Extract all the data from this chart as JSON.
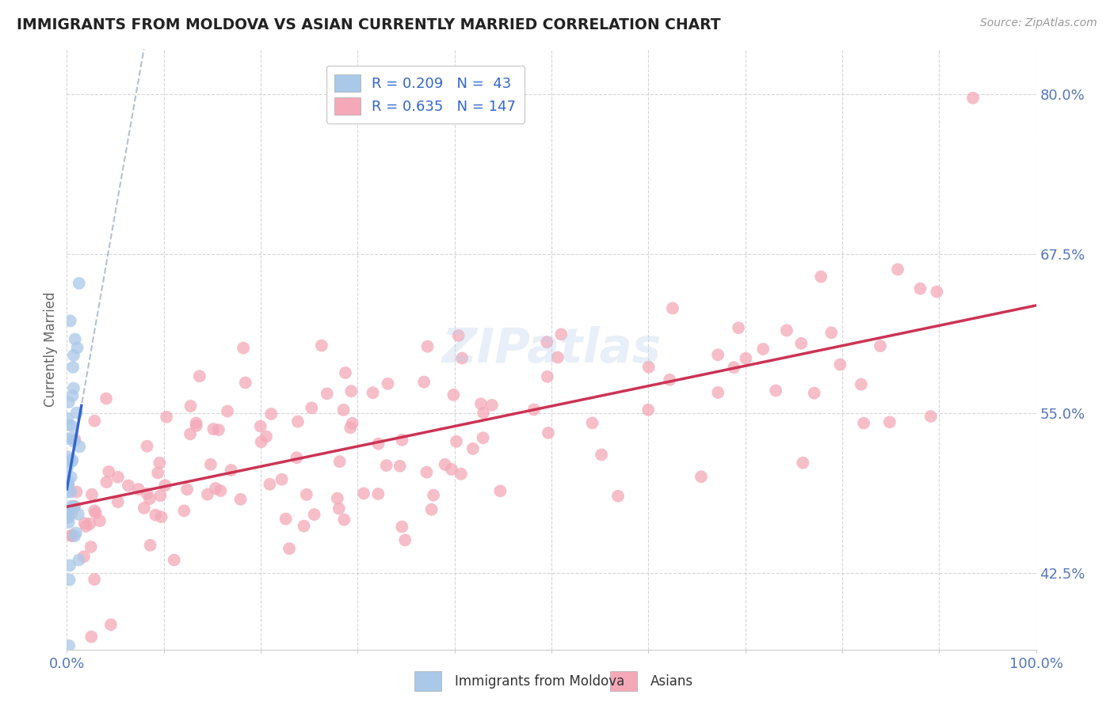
{
  "title": "IMMIGRANTS FROM MOLDOVA VS ASIAN CURRENTLY MARRIED CORRELATION CHART",
  "source": "Source: ZipAtlas.com",
  "ylabel": "Currently Married",
  "ytick_values": [
    0.425,
    0.55,
    0.675,
    0.8
  ],
  "ytick_labels": [
    "42.5%",
    "55.0%",
    "67.5%",
    "80.0%"
  ],
  "xtick_values": [
    0.0,
    0.1,
    0.2,
    0.3,
    0.4,
    0.5,
    0.6,
    0.7,
    0.8,
    0.9,
    1.0
  ],
  "xlim": [
    0.0,
    1.0
  ],
  "ylim": [
    0.365,
    0.835
  ],
  "legend_line1": "R = 0.209   N =  43",
  "legend_line2": "R = 0.635   N = 147",
  "bottom_legend1": "Immigrants from Moldova",
  "bottom_legend2": "Asians",
  "background_color": "#ffffff",
  "grid_color": "#cccccc",
  "moldova_color": "#aac8e8",
  "moldova_edge": "none",
  "asians_color": "#f4a8b8",
  "asians_edge": "none",
  "trend_moldova_color": "#3366cc",
  "trend_asians_color": "#cc3355",
  "dashed_color": "#aabbcc",
  "watermark": "ZIPatlas",
  "title_color": "#222222",
  "axis_tick_color": "#5577bb",
  "source_color": "#999999",
  "legend_text_color": "#3366cc",
  "scatter_size": 130,
  "scatter_alpha": 0.75,
  "moldova_seed": 12,
  "asians_seed": 99
}
